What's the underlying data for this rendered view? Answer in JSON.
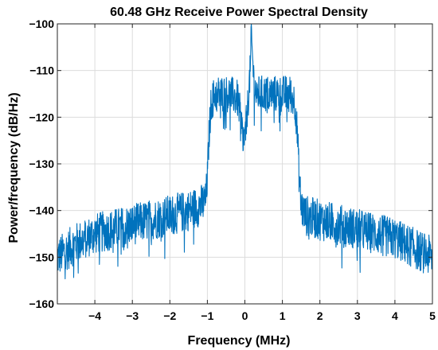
{
  "chart_data": {
    "type": "line",
    "title": "60.48 GHz Receive Power Spectral Density",
    "xlabel": "Frequency (MHz)",
    "ylabel": "Power/frequency (dB/Hz)",
    "xlim": [
      -5,
      5
    ],
    "ylim": [
      -160,
      -100
    ],
    "x_ticks": [
      -4,
      -3,
      -2,
      -1,
      0,
      1,
      2,
      3,
      4,
      5
    ],
    "y_ticks": [
      -160,
      -150,
      -140,
      -130,
      -120,
      -110,
      -100
    ],
    "grid": true,
    "legend": "none",
    "series": [
      {
        "color": "#0072bd",
        "x": [
          -5.0,
          -4.5,
          -4.0,
          -3.5,
          -3.0,
          -2.5,
          -2.0,
          -1.5,
          -1.2,
          -1.05,
          -1.0,
          -0.95,
          -0.9,
          -0.8,
          -0.6,
          -0.4,
          -0.3,
          -0.2,
          -0.15,
          -0.1,
          -0.05,
          0.0,
          0.05,
          0.1,
          0.15,
          0.17,
          0.2,
          0.25,
          0.3,
          0.4,
          0.6,
          0.8,
          1.0,
          1.2,
          1.3,
          1.35,
          1.4,
          1.45,
          1.5,
          1.6,
          2.0,
          2.5,
          3.0,
          3.5,
          4.0,
          4.5,
          5.0
        ],
        "y": [
          -150,
          -147,
          -145,
          -144,
          -143,
          -142,
          -141,
          -140,
          -139,
          -138,
          -133,
          -123,
          -117,
          -115,
          -115,
          -115,
          -115.5,
          -116,
          -118,
          -121,
          -124,
          -125,
          -120,
          -115,
          -109,
          -101,
          -107,
          -113,
          -115,
          -115,
          -115,
          -115,
          -115,
          -115,
          -116,
          -118,
          -124,
          -133,
          -139,
          -141,
          -142,
          -143,
          -144,
          -145,
          -146,
          -148,
          -150
        ],
        "noise_db": 4
      }
    ]
  }
}
